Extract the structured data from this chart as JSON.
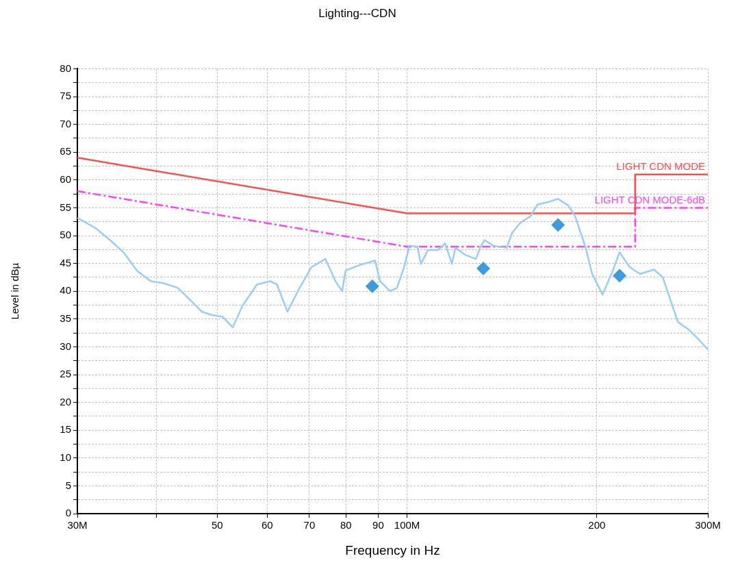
{
  "chart_data": {
    "type": "line",
    "title": "Lighting---CDN",
    "xlabel": "Frequency in Hz",
    "ylabel": "Level in dBµ",
    "log": "x",
    "grid": true,
    "legend": false,
    "xlim": [
      30,
      300
    ],
    "ylim": [
      0,
      80
    ],
    "xticks": [
      {
        "value": 30,
        "label": "30M"
      },
      {
        "value": 40,
        "label": null
      },
      50,
      60,
      70,
      80,
      90,
      {
        "value": 100,
        "label": "100M"
      },
      200,
      {
        "value": 300,
        "label": "300M"
      }
    ],
    "yticks": [
      0,
      {
        "value": 2.5,
        "label": null
      },
      5,
      {
        "value": 7.5,
        "label": null
      },
      10,
      {
        "value": 12.5,
        "label": null
      },
      15,
      {
        "value": 17.5,
        "label": null
      },
      20,
      {
        "value": 22.5,
        "label": null
      },
      25,
      {
        "value": 27.5,
        "label": null
      },
      30,
      {
        "value": 32.5,
        "label": null
      },
      35,
      {
        "value": 37.5,
        "label": null
      },
      40,
      {
        "value": 42.5,
        "label": null
      },
      45,
      {
        "value": 47.5,
        "label": null
      },
      50,
      {
        "value": 52.5,
        "label": null
      },
      55,
      {
        "value": 57.5,
        "label": null
      },
      60,
      {
        "value": 62.5,
        "label": null
      },
      65,
      {
        "value": 67.5,
        "label": null
      },
      70,
      {
        "value": 72.5,
        "label": null
      },
      75,
      {
        "value": 77.5,
        "label": null
      },
      80
    ],
    "series": [
      {
        "color": "#99ccff",
        "marker": "none",
        "line_style": "solid",
        "x": [
          30,
          32.1,
          33.8,
          35.5,
          37.3,
          39.2,
          41.2,
          43.3,
          45.5,
          47.3,
          49.1,
          51.0,
          52.9,
          54.9,
          57.8,
          60.7,
          62.2,
          64.6,
          67.1,
          70.5,
          74.2,
          77.0,
          78.9,
          79.9,
          84.0,
          89.0,
          90.6,
          94.0,
          96.4,
          98.9,
          100.9,
          103.9,
          105.2,
          107.9,
          112.0,
          114.9,
          117.8,
          119.3,
          123.8,
          128.6,
          130.8,
          132.8,
          136.8,
          143.9,
          146.8,
          151.2,
          157.0,
          161.0,
          167.1,
          173.5,
          180.2,
          184.7,
          191.8,
          196.6,
          204.2,
          212.0,
          217.3,
          225.6,
          234.2,
          246.3,
          254.4,
          262.1,
          268.7,
          279.0,
          289.7,
          300
        ],
        "values": [
          53.2,
          51.3,
          49.2,
          47.0,
          43.7,
          41.8,
          41.4,
          40.6,
          38.2,
          36.3,
          35.7,
          35.4,
          33.5,
          37.5,
          41.2,
          41.8,
          41.2,
          36.3,
          40.0,
          44.3,
          45.8,
          41.8,
          40.0,
          43.7,
          44.7,
          45.5,
          41.8,
          40.0,
          40.6,
          44.3,
          48.2,
          48.0,
          44.9,
          47.4,
          47.4,
          48.6,
          44.9,
          47.8,
          46.5,
          45.8,
          48.0,
          49.2,
          48.2,
          47.8,
          50.5,
          52.3,
          53.5,
          55.6,
          56.0,
          56.6,
          55.4,
          53.5,
          48.0,
          43.1,
          39.4,
          43.7,
          47.0,
          44.3,
          43.1,
          43.9,
          42.5,
          38.2,
          34.5,
          33.2,
          31.4,
          29.5
        ]
      },
      {
        "name": "LIGHT CDN MODE",
        "color": "#ff4d4d",
        "marker": "none",
        "line_style": "solid",
        "x": [
          30,
          100,
          230,
          230,
          300
        ],
        "values": [
          64,
          54,
          54,
          61,
          61
        ]
      },
      {
        "name": "LIGHT CDN MODE-6dB",
        "color": "#ff40ff",
        "marker": "none",
        "line_style": "dashed",
        "x": [
          30,
          100,
          230,
          230,
          300
        ],
        "values": [
          58,
          48,
          48,
          55,
          55
        ]
      },
      {
        "type": "scatter",
        "color": "#3d9be0",
        "marker": "diamond",
        "x": [
          88.1,
          132.1,
          173.6,
          217.3
        ],
        "values": [
          40.9,
          44.1,
          51.9,
          42.8
        ]
      }
    ]
  }
}
